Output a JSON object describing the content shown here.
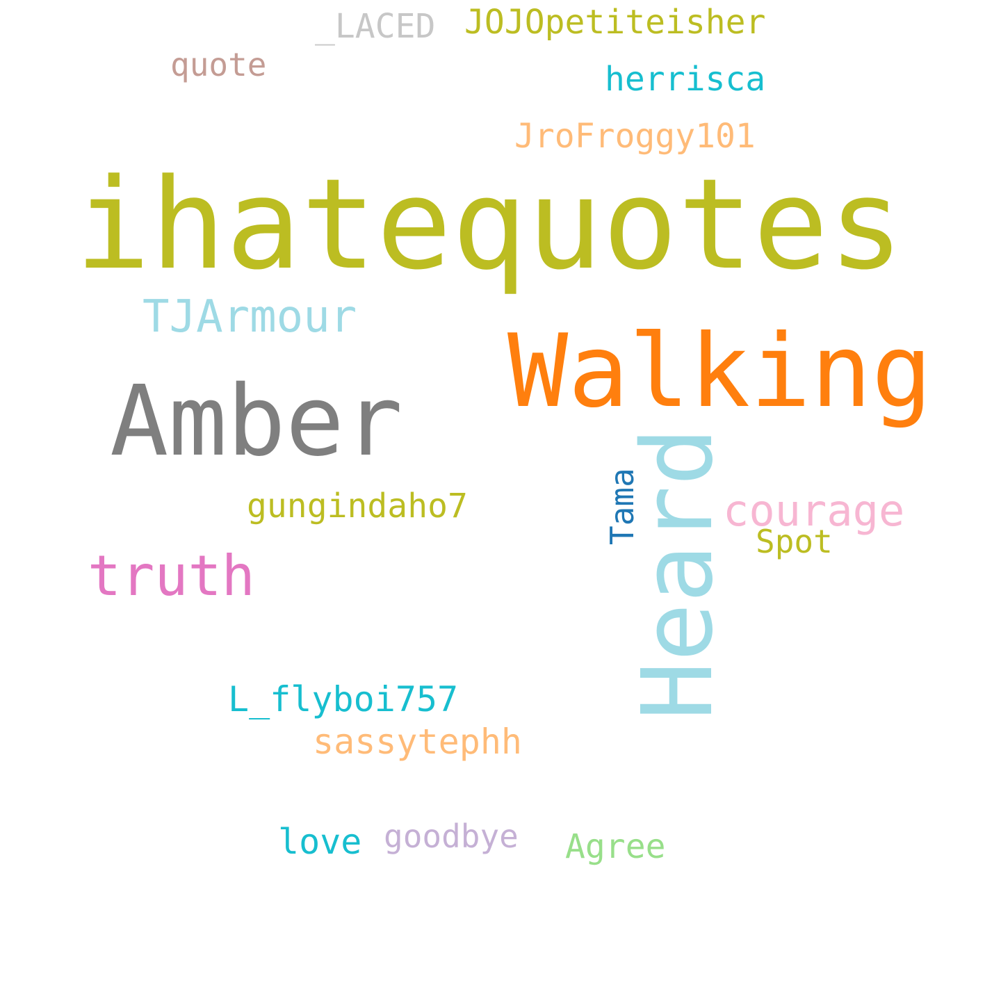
{
  "background": "#ffffff",
  "words": {
    "ihatequotes": {
      "text": "ihatequotes",
      "color": "#bcbd22",
      "orientation": "horizontal"
    },
    "walking": {
      "text": "Walking",
      "color": "#ff7f0e",
      "orientation": "horizontal"
    },
    "amber": {
      "text": "Amber",
      "color": "#7f7f7f",
      "orientation": "horizontal"
    },
    "heard": {
      "text": "Heard",
      "color": "#9edae5",
      "orientation": "vertical"
    },
    "tjarmour": {
      "text": "TJArmour",
      "color": "#9edae5",
      "orientation": "horizontal"
    },
    "truth": {
      "text": "truth",
      "color": "#e377c2",
      "orientation": "horizontal"
    },
    "courage": {
      "text": "courage",
      "color": "#f7b6d2",
      "orientation": "horizontal"
    },
    "gungindaho7": {
      "text": "gungindaho7",
      "color": "#bcbd22",
      "orientation": "horizontal"
    },
    "tama": {
      "text": "Tama",
      "color": "#1f77b4",
      "orientation": "vertical"
    },
    "spot": {
      "text": "Spot",
      "color": "#bcbd22",
      "orientation": "horizontal"
    },
    "lflyboi757": {
      "text": "L_flyboi757",
      "color": "#17becf",
      "orientation": "horizontal"
    },
    "sassytephh": {
      "text": "sassytephh",
      "color": "#ffbb78",
      "orientation": "horizontal"
    },
    "love": {
      "text": "love",
      "color": "#17becf",
      "orientation": "horizontal"
    },
    "goodbye": {
      "text": "goodbye",
      "color": "#c5b0d5",
      "orientation": "horizontal"
    },
    "agree": {
      "text": "Agree",
      "color": "#98df8a",
      "orientation": "horizontal"
    },
    "laced": {
      "text": "_LACED",
      "color": "#c7c7c7",
      "orientation": "horizontal"
    },
    "jojopetiteisher": {
      "text": "JOJOpetiteisher",
      "color": "#bcbd22",
      "orientation": "horizontal"
    },
    "quote": {
      "text": "quote",
      "color": "#c49c94",
      "orientation": "horizontal"
    },
    "herrisca": {
      "text": "herrisca",
      "color": "#17becf",
      "orientation": "horizontal"
    },
    "jrofroggy101": {
      "text": "JroFroggy101",
      "color": "#ffbb78",
      "orientation": "horizontal"
    }
  }
}
